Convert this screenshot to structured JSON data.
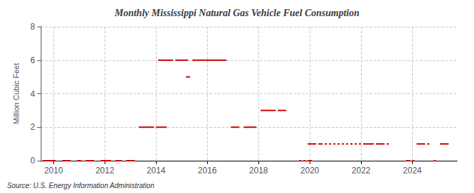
{
  "chart_data": {
    "type": "line",
    "title": "Monthly Mississippi Natural Gas Vehicle Fuel Consumption",
    "ylabel": "Million Cubic Feet",
    "annotation": "Source: U.S. Energy Information Administration",
    "color": "#cc0000",
    "grid": true,
    "xlim": [
      2009.5,
      2025.75
    ],
    "xticks": [
      2010,
      2012,
      2014,
      2016,
      2018,
      2020,
      2022,
      2024
    ],
    "ylim": [
      0,
      8
    ],
    "yticks": [
      0,
      2,
      4,
      6,
      8
    ],
    "x_start": [
      2009.583,
      2010.333,
      2010.917,
      2011.25,
      2011.833,
      2012.417,
      2012.833,
      2013.333,
      2014.0,
      2014.083,
      2014.75,
      2015.167,
      2015.417,
      2016.917,
      2017.417,
      2018.083,
      2018.75,
      2019.583,
      2019.75,
      2019.917,
      2019.917,
      2020.333,
      2020.583,
      2020.75,
      2020.917,
      2021.083,
      2021.25,
      2021.417,
      2021.583,
      2021.75,
      2021.917,
      2022.083,
      2022.583,
      2023.0,
      2023.75,
      2024.0,
      2024.167,
      2024.583,
      2024.833,
      2025.083
    ],
    "x_end": [
      2010.083,
      2010.667,
      2011.083,
      2011.583,
      2012.25,
      2012.667,
      2013.167,
      2013.917,
      2014.417,
      2014.667,
      2015.25,
      2015.333,
      2016.75,
      2017.25,
      2017.917,
      2018.667,
      2019.083,
      2019.667,
      2019.833,
      2020.083,
      2020.25,
      2020.5,
      2020.667,
      2020.833,
      2021.0,
      2021.167,
      2021.333,
      2021.5,
      2021.667,
      2021.833,
      2022.0,
      2022.5,
      2022.917,
      2023.083,
      2023.917,
      2024.083,
      2024.5,
      2024.667,
      2024.917,
      2025.417
    ],
    "values": [
      0,
      0,
      0,
      0,
      0,
      0,
      0,
      2,
      2,
      6,
      6,
      5,
      6,
      2,
      2,
      3,
      3,
      0,
      0,
      0,
      1,
      1,
      1,
      1,
      1,
      1,
      1,
      1,
      1,
      1,
      1,
      1,
      1,
      1,
      0,
      0,
      1,
      1,
      0,
      1
    ]
  }
}
